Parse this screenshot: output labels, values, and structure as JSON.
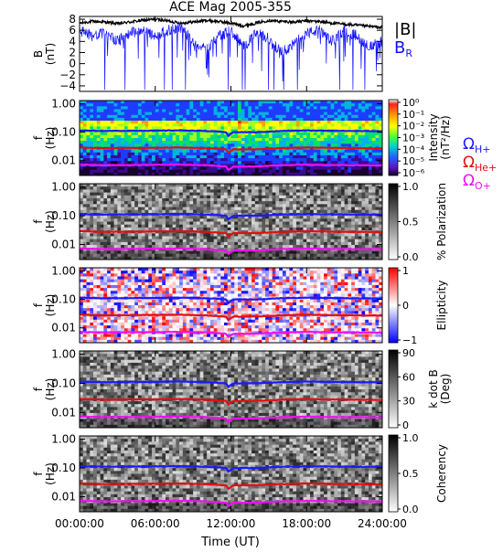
{
  "chart_data": {
    "title": "ACE Mag 2005-355",
    "xlabel": "Time (UT)",
    "x_ticks": [
      "00:00:00",
      "06:00:00",
      "12:00:00",
      "18:00:00",
      "24:00:00"
    ],
    "x_range_hours": [
      0,
      24
    ],
    "panels": [
      {
        "type": "line",
        "ylabel": "B",
        "yunit": "(nT)",
        "ylim": [
          -5,
          8.5
        ],
        "y_ticks": [
          "8",
          "6",
          "4",
          "2",
          "0",
          "−2",
          "−4"
        ],
        "y_tick_values": [
          8,
          6,
          4,
          2,
          0,
          -2,
          -4
        ],
        "series": [
          {
            "name": "|B|",
            "color": "#000000",
            "x": [
              0,
              1,
              2,
              3,
              4,
              5,
              6,
              7,
              8,
              9,
              10,
              11,
              12,
              13,
              14,
              15,
              16,
              17,
              18,
              19,
              20,
              21,
              22,
              23,
              24
            ],
            "values": [
              7.3,
              7.6,
              7.5,
              7.2,
              7.5,
              7.8,
              8.0,
              7.7,
              7.3,
              7.5,
              7.8,
              7.6,
              7.3,
              6.8,
              7.3,
              7.8,
              7.6,
              7.5,
              7.7,
              7.6,
              7.3,
              7.1,
              6.9,
              6.7,
              6.5
            ]
          },
          {
            "name": "B",
            "sub": "R",
            "color": "#1010ff",
            "x": [
              0,
              1,
              2,
              3,
              4,
              5,
              6,
              7,
              8,
              9,
              10,
              11,
              12,
              13,
              14,
              15,
              16,
              17,
              18,
              19,
              20,
              21,
              22,
              23,
              24
            ],
            "values": [
              6.0,
              5.0,
              5.5,
              4.0,
              5.5,
              6.0,
              5.0,
              6.0,
              6.5,
              4.0,
              2.5,
              5.0,
              6.0,
              3.0,
              5.5,
              4.5,
              2.0,
              3.5,
              5.5,
              6.0,
              4.0,
              6.0,
              5.0,
              3.0,
              4.0
            ]
          }
        ]
      },
      {
        "type": "heatmap",
        "quantity": "Intensity",
        "ylabel": "f",
        "yunit": "(Hz)",
        "ylim_hz": [
          0.003,
          1.2
        ],
        "y_ticks": [
          "1.00",
          "0.10",
          "0.01"
        ],
        "y_tick_values": [
          1.0,
          0.1,
          0.01
        ],
        "colorbar_label": "Intensity",
        "colorbar_unit": "(nT²/Hz)",
        "colorbar_ticks": [
          "10⁰",
          "10⁻¹",
          "10⁻²",
          "10⁻³",
          "10⁻⁴",
          "10⁻⁵",
          "10⁻⁶"
        ],
        "colorbar_scale": "rainbow"
      },
      {
        "type": "heatmap",
        "quantity": "% Polarization",
        "ylabel": "f",
        "yunit": "(Hz)",
        "y_ticks": [
          "1.00",
          "0.10",
          "0.01"
        ],
        "y_tick_values": [
          1.0,
          0.1,
          0.01
        ],
        "colorbar_label": "% Polarization",
        "colorbar_ticks": [
          "1.0",
          "0.5",
          "0.0"
        ],
        "colorbar_scale": "grayscale"
      },
      {
        "type": "heatmap",
        "quantity": "Ellipticity",
        "ylabel": "f",
        "yunit": "(Hz)",
        "y_ticks": [
          "1.00",
          "0.10",
          "0.01"
        ],
        "y_tick_values": [
          1.0,
          0.1,
          0.01
        ],
        "colorbar_label": "Ellipticity",
        "colorbar_ticks": [
          "1",
          "0",
          "−1"
        ],
        "colorbar_scale": "blue-white-red"
      },
      {
        "type": "heatmap",
        "quantity": "k dot B",
        "ylabel": "f",
        "yunit": "(Hz)",
        "y_ticks": [
          "1.00",
          "0.10",
          "0.01"
        ],
        "y_tick_values": [
          1.0,
          0.1,
          0.01
        ],
        "colorbar_label": "k dot B",
        "colorbar_unit": "(Deg)",
        "colorbar_ticks": [
          "90",
          "60",
          "30",
          "0"
        ],
        "colorbar_scale": "grayscale"
      },
      {
        "type": "heatmap",
        "quantity": "Coherency",
        "ylabel": "f",
        "yunit": "(Hz)",
        "y_ticks": [
          "1.00",
          "0.10",
          "0.01"
        ],
        "y_tick_values": [
          1.0,
          0.1,
          0.01
        ],
        "colorbar_label": "Coherency",
        "colorbar_ticks": [
          "1.0",
          "0.5",
          "0.0"
        ],
        "colorbar_scale": "grayscale"
      }
    ],
    "gyrofrequency_lines": {
      "x": [
        0,
        2,
        4,
        6,
        8,
        10,
        11,
        11.6,
        11.8,
        12.2,
        13,
        14,
        16,
        18,
        20,
        22,
        24
      ],
      "series": [
        {
          "name": "Ω",
          "sub": "H+",
          "color": "#1a1aff",
          "values_hz": [
            0.115,
            0.11,
            0.112,
            0.113,
            0.116,
            0.11,
            0.105,
            0.1,
            0.075,
            0.1,
            0.1,
            0.1,
            0.11,
            0.115,
            0.112,
            0.11,
            0.108
          ]
        },
        {
          "name": "Ω",
          "sub": "He+",
          "color": "#e01010",
          "values_hz": [
            0.029,
            0.0275,
            0.028,
            0.0283,
            0.029,
            0.0275,
            0.026,
            0.025,
            0.019,
            0.025,
            0.025,
            0.025,
            0.0275,
            0.029,
            0.028,
            0.0275,
            0.027
          ]
        },
        {
          "name": "Ω",
          "sub": "O+",
          "color": "#ee10ee",
          "values_hz": [
            0.0072,
            0.0069,
            0.007,
            0.0071,
            0.0072,
            0.0069,
            0.0065,
            0.0062,
            0.0047,
            0.0062,
            0.0062,
            0.0062,
            0.0069,
            0.0072,
            0.007,
            0.0069,
            0.0068
          ]
        }
      ]
    }
  }
}
